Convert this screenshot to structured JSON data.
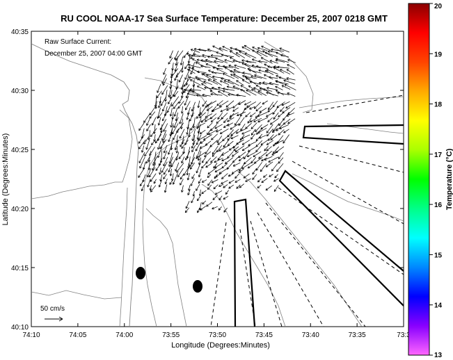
{
  "title": "RU COOL  NOAA-17  Sea Surface Temperature:  December 25, 2007 0218 GMT",
  "annotation": {
    "line1": "Raw Surface Current:",
    "line2": "December 25, 2007 04:00 GMT"
  },
  "scale_label": "50 cm/s",
  "colors": {
    "title": "#00008b",
    "annotation": "#00008b",
    "contour": "#808080",
    "vector": "#000000"
  },
  "chart_data": {
    "type": "map",
    "xlabel": "Longitude (Degrees:Minutes)",
    "ylabel": "Latitude (Degrees:Minutes)",
    "x_ticks": [
      "74:10",
      "74:05",
      "74:00",
      "73:55",
      "73:50",
      "73:45",
      "73:40",
      "73:35",
      "73:3"
    ],
    "y_ticks": [
      "40:35",
      "40:30",
      "40:25",
      "40:20",
      "40:15",
      "40:10"
    ],
    "xlim_min": [
      -74.1667,
      -73.5
    ],
    "ylim_min": [
      40.1667,
      40.5833
    ],
    "vector_scale_cm_s": 50,
    "colorbar": {
      "label": "Temperature (°C)",
      "min": 13,
      "max": 20,
      "ticks": [
        "20",
        "19",
        "18",
        "17",
        "16",
        "15",
        "14",
        "13"
      ],
      "colormap": [
        "#ff66ff",
        "#8800ff",
        "#0000ff",
        "#0088ff",
        "#00ffff",
        "#00ff88",
        "#00ff00",
        "#aaff00",
        "#ffff00",
        "#ffaa00",
        "#ff4400",
        "#ff0000",
        "#8b0000"
      ]
    }
  }
}
